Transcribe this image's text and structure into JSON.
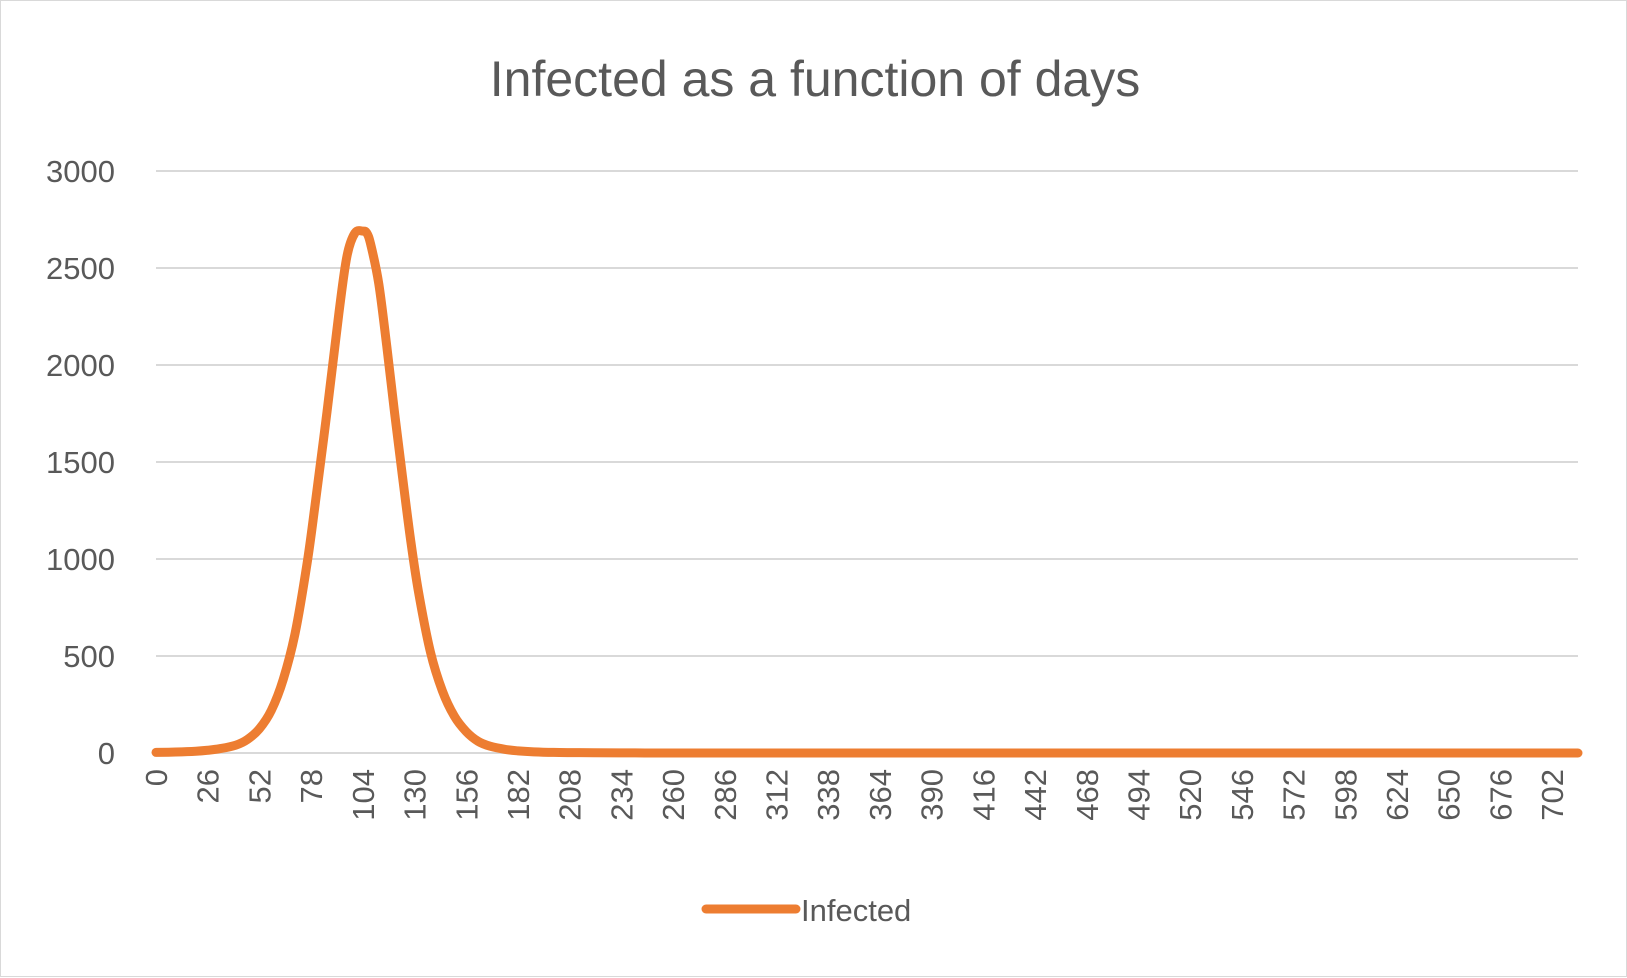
{
  "chart_data": {
    "type": "line",
    "title": "Infected as a function of days",
    "xlabel": "",
    "ylabel": "",
    "x_range": [
      0,
      715
    ],
    "ylim": [
      0,
      3000
    ],
    "y_ticks": [
      "0",
      "500",
      "1000",
      "1500",
      "2000",
      "2500",
      "3000"
    ],
    "x_ticks": [
      "0",
      "26",
      "52",
      "78",
      "104",
      "130",
      "156",
      "182",
      "208",
      "234",
      "260",
      "286",
      "312",
      "338",
      "364",
      "390",
      "416",
      "442",
      "468",
      "494",
      "520",
      "546",
      "572",
      "598",
      "624",
      "650",
      "676",
      "702"
    ],
    "grid": true,
    "legend_position": "bottom",
    "series": [
      {
        "name": "Infected",
        "color": "#ED7D31",
        "x": [
          0,
          10,
          20,
          26,
          32,
          40,
          46,
          52,
          58,
          64,
          70,
          76,
          80,
          86,
          92,
          96,
          100,
          104,
          106,
          108,
          112,
          116,
          120,
          124,
          128,
          132,
          138,
          144,
          150,
          156,
          162,
          168,
          176,
          182,
          190,
          200,
          210,
          220,
          240,
          260,
          300,
          715
        ],
        "values": [
          3,
          5,
          9,
          14,
          22,
          40,
          70,
          125,
          220,
          380,
          620,
          980,
          1280,
          1760,
          2270,
          2560,
          2680,
          2690,
          2680,
          2620,
          2420,
          2100,
          1750,
          1420,
          1100,
          830,
          520,
          320,
          190,
          110,
          60,
          35,
          18,
          11,
          6,
          3,
          2,
          1,
          0.5,
          0,
          0,
          0
        ]
      }
    ]
  }
}
